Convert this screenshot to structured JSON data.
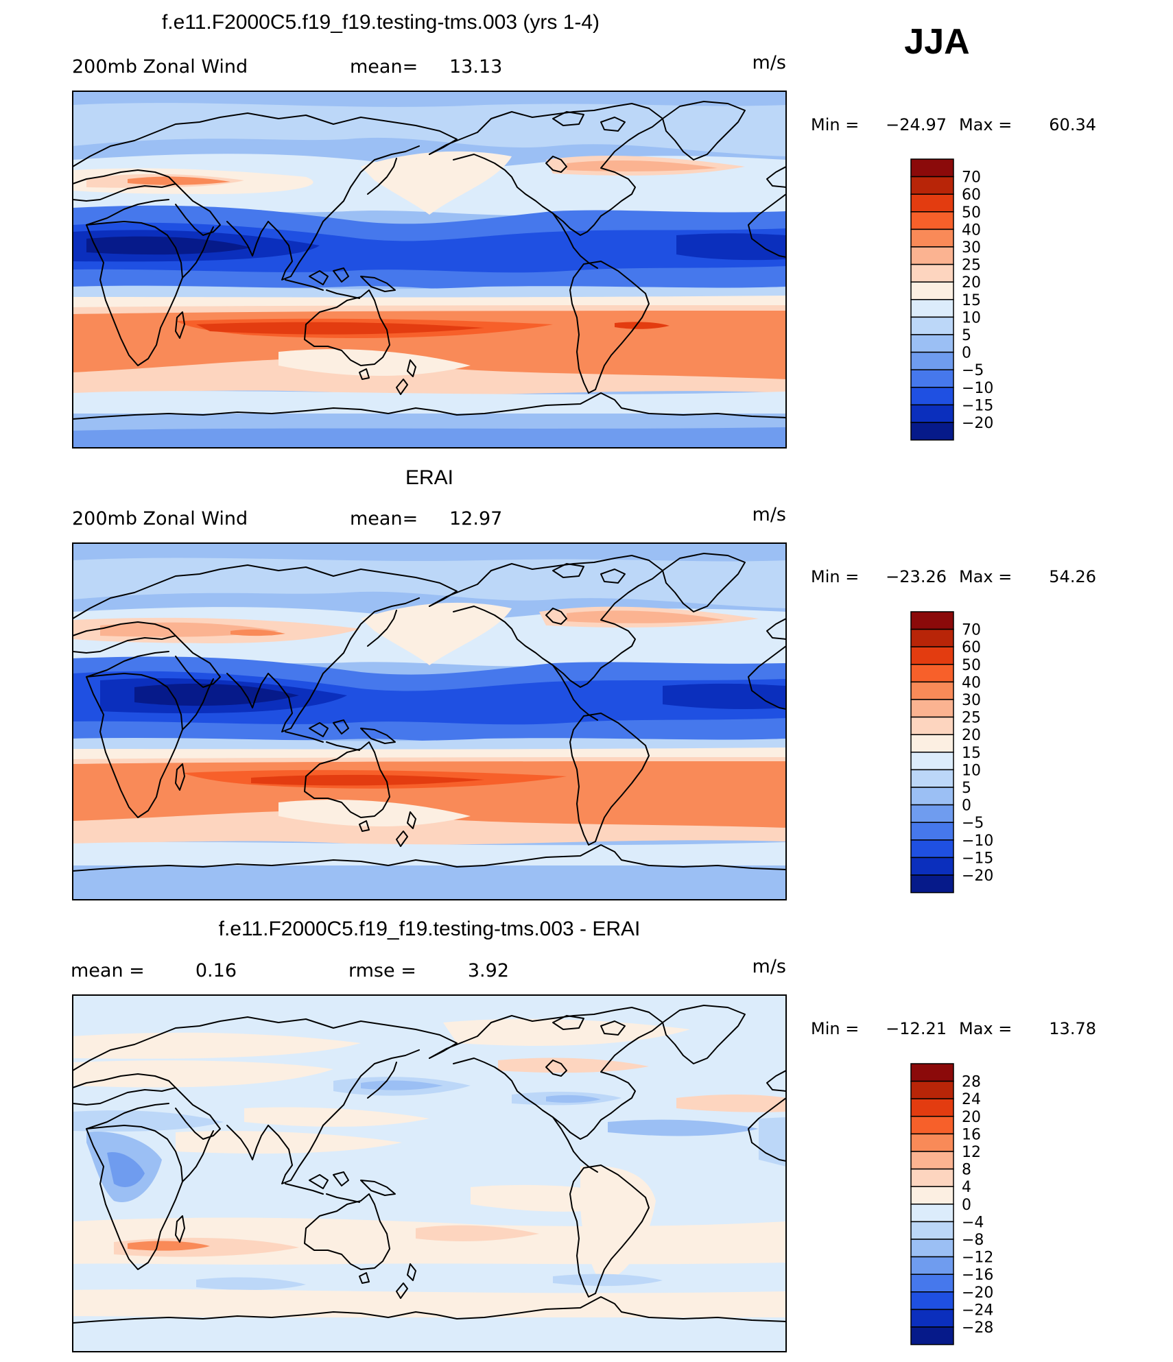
{
  "season": "JJA",
  "panels": [
    {
      "id": "model",
      "title": "f.e11.F2000C5.f19_f19.testing-tms.003 (yrs 1-4)",
      "left_label": "200mb Zonal Wind",
      "mid_label": "mean=",
      "mid_value": "13.13",
      "units": "m/s",
      "min_label": "Min =",
      "min_value": "−24.97",
      "max_label": "Max =",
      "max_value": "60.34",
      "levels": [
        "70",
        "60",
        "50",
        "40",
        "30",
        "25",
        "20",
        "15",
        "10",
        "5",
        "0",
        "−5",
        "−10",
        "−15",
        "−20"
      ],
      "colors": [
        "#8b0a0a",
        "#b82508",
        "#e33c10",
        "#f7602a",
        "#f98a58",
        "#fbb391",
        "#fdd5bf",
        "#fcefe2",
        "#dcecfb",
        "#bcd7f8",
        "#9bbff4",
        "#6f9cef",
        "#4678ec",
        "#1f50e2",
        "#0b2fbd",
        "#061a8a"
      ]
    },
    {
      "id": "obs",
      "title": "ERAI",
      "left_label": "200mb Zonal Wind",
      "mid_label": "mean=",
      "mid_value": "12.97",
      "units": "m/s",
      "min_label": "Min =",
      "min_value": "−23.26",
      "max_label": "Max =",
      "max_value": "54.26",
      "levels": [
        "70",
        "60",
        "50",
        "40",
        "30",
        "25",
        "20",
        "15",
        "10",
        "5",
        "0",
        "−5",
        "−10",
        "−15",
        "−20"
      ],
      "colors": [
        "#8b0a0a",
        "#b82508",
        "#e33c10",
        "#f7602a",
        "#f98a58",
        "#fbb391",
        "#fdd5bf",
        "#fcefe2",
        "#dcecfb",
        "#bcd7f8",
        "#9bbff4",
        "#6f9cef",
        "#4678ec",
        "#1f50e2",
        "#0b2fbd",
        "#061a8a"
      ]
    },
    {
      "id": "diff",
      "title": "f.e11.F2000C5.f19_f19.testing-tms.003 - ERAI",
      "left_label": "mean =",
      "left_value": "0.16",
      "mid_label": "rmse =",
      "mid_value": "3.92",
      "units": "m/s",
      "min_label": "Min =",
      "min_value": "−12.21",
      "max_label": "Max =",
      "max_value": "13.78",
      "levels": [
        "28",
        "24",
        "20",
        "16",
        "12",
        "8",
        "4",
        "0",
        "−4",
        "−8",
        "−12",
        "−16",
        "−20",
        "−24",
        "−28"
      ],
      "colors": [
        "#8b0a0a",
        "#b82508",
        "#e33c10",
        "#f7602a",
        "#f98a58",
        "#fbb391",
        "#fdd5bf",
        "#fcefe2",
        "#dcecfb",
        "#bcd7f8",
        "#9bbff4",
        "#6f9cef",
        "#4678ec",
        "#1f50e2",
        "#0b2fbd",
        "#061a8a"
      ]
    }
  ]
}
